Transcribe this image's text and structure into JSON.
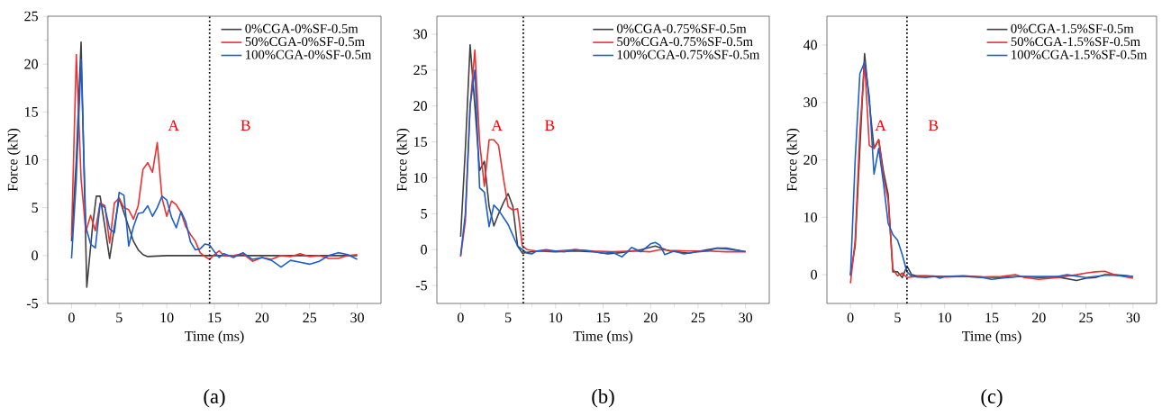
{
  "chart_data": [
    {
      "type": "line",
      "xlabel": "Time (ms)",
      "ylabel": "Force (kN)",
      "xlim": [
        -2.5,
        32.5
      ],
      "ylim": [
        -5,
        25
      ],
      "xticks": [
        0,
        5,
        10,
        15,
        20,
        25,
        30
      ],
      "yticks": [
        -5,
        0,
        5,
        10,
        15,
        20,
        25
      ],
      "legend": "top right",
      "grid": false,
      "line_style": "solid",
      "ref_lines": [
        {
          "axis": "x",
          "value": 14.5,
          "line_style": "dotted",
          "color": "#000000"
        }
      ],
      "annotations": [
        "A",
        "B",
        "(a)"
      ],
      "series": [
        {
          "name": "0%CGA-0%SF-0.5m",
          "color": "#404040",
          "x": [
            0,
            0.5,
            1.0,
            1.6,
            2.2,
            2.6,
            3.0,
            3.5,
            4.0,
            4.5,
            5.0,
            5.5,
            6,
            6.5,
            7,
            7.5,
            8,
            10,
            15,
            20,
            25,
            28,
            30
          ],
          "values": [
            1.5,
            10,
            22.3,
            -3.3,
            3,
            6.2,
            6.2,
            3,
            -0.3,
            3,
            6,
            4.5,
            3,
            1.5,
            0.6,
            0.1,
            -0.1,
            0,
            0,
            0,
            0,
            0,
            0
          ]
        },
        {
          "name": "50%CGA-0%SF-0.5m",
          "color": "#ee3030",
          "x": [
            0,
            0.5,
            1.0,
            1.5,
            2.0,
            2.5,
            3.0,
            3.5,
            4.0,
            4.5,
            5.0,
            5.5,
            6.0,
            6.5,
            7.0,
            7.5,
            8.0,
            8.5,
            9.0,
            9.5,
            10.0,
            10.5,
            11.0,
            11.5,
            12,
            12.5,
            13,
            13.5,
            14,
            14.5,
            15,
            15.5,
            16,
            17,
            18,
            19,
            20,
            21,
            22,
            23,
            24,
            25,
            26,
            27,
            28,
            29,
            30
          ],
          "values": [
            2,
            21,
            8,
            2.5,
            4.2,
            2.6,
            5.5,
            5.2,
            1.3,
            5.5,
            6,
            5,
            4.8,
            3.8,
            5.2,
            9,
            9.7,
            8.7,
            11.8,
            6,
            4.1,
            5.7,
            5.3,
            4.5,
            3,
            2.2,
            1.5,
            0.3,
            -0.1,
            -0.4,
            0.1,
            0.5,
            0,
            0,
            0.2,
            -0.6,
            -0.2,
            -0.4,
            0,
            -0.1,
            0.2,
            -0.1,
            0,
            -0.3,
            -0.3,
            0,
            0.1
          ]
        },
        {
          "name": "100%CGA-0%SF-0.5m",
          "color": "#1a5fd0",
          "x": [
            0,
            0.5,
            1.0,
            1.5,
            2.0,
            2.5,
            3.0,
            3.5,
            4.0,
            4.5,
            5.0,
            5.5,
            6.0,
            6.5,
            7.0,
            7.5,
            8.0,
            8.5,
            9.0,
            9.5,
            10,
            10.5,
            11,
            11.5,
            12,
            12.5,
            13,
            13.5,
            14,
            14.5,
            15,
            15.5,
            16,
            17,
            18,
            19,
            20,
            21,
            22,
            23,
            24,
            25,
            26,
            27,
            28,
            29,
            30
          ],
          "values": [
            -0.3,
            8,
            20.5,
            3,
            1.2,
            0.8,
            5.4,
            5,
            2.8,
            2.4,
            6.6,
            6.3,
            1,
            3,
            4.4,
            4.5,
            5.2,
            4.1,
            5,
            6.2,
            5.8,
            4,
            2.9,
            4.6,
            3.5,
            1.4,
            0.6,
            0.7,
            1.2,
            1.1,
            0.4,
            -0.2,
            0.2,
            -0.2,
            0.3,
            -0.4,
            -0.2,
            -0.5,
            -1.2,
            -0.5,
            -0.7,
            -0.9,
            -0.6,
            0,
            0.3,
            0.1,
            -0.4
          ]
        }
      ]
    },
    {
      "type": "line",
      "xlabel": "Time (ms)",
      "ylabel": "Force (kN)",
      "xlim": [
        -2.5,
        32.5
      ],
      "ylim": [
        -7.5,
        32.5
      ],
      "xticks": [
        0,
        5,
        10,
        15,
        20,
        25,
        30
      ],
      "yticks": [
        -5,
        0,
        5,
        10,
        15,
        20,
        25,
        30
      ],
      "legend": "top right",
      "grid": false,
      "line_style": "solid",
      "ref_lines": [
        {
          "axis": "x",
          "value": 6.6,
          "line_style": "dotted",
          "color": "#000000"
        }
      ],
      "annotations": [
        "A",
        "B",
        "(b)"
      ],
      "series": [
        {
          "name": "0%CGA-0.75%SF-0.5m",
          "color": "#404040",
          "x": [
            0,
            0.5,
            1.0,
            1.5,
            2.0,
            2.5,
            3.0,
            3.5,
            4.0,
            4.5,
            5.0,
            5.5,
            6.0,
            6.5,
            7,
            8,
            10,
            12,
            14,
            15.5,
            17,
            19,
            20.5,
            22,
            24,
            26,
            27,
            28,
            30
          ],
          "values": [
            1.8,
            14,
            28.5,
            20,
            11,
            12.3,
            6,
            3.3,
            5,
            6.5,
            7.8,
            6,
            0.5,
            -0.5,
            -0.4,
            -0.2,
            -0.3,
            -0.2,
            -0.3,
            -0.6,
            -0.4,
            0,
            0.5,
            -0.2,
            -0.5,
            0,
            0.2,
            0.2,
            -0.3
          ]
        },
        {
          "name": "50%CGA-0.75%SF-0.5m",
          "color": "#ee3030",
          "x": [
            0,
            0.5,
            1.0,
            1.5,
            2.0,
            2.5,
            3.0,
            3.5,
            4.0,
            4.5,
            5.0,
            5.5,
            6.0,
            6.5,
            7,
            8,
            10,
            12,
            14,
            16,
            18,
            20,
            21,
            22,
            24,
            26,
            28,
            30
          ],
          "values": [
            -1,
            4,
            20,
            27.8,
            15,
            8.8,
            15.3,
            15.3,
            14.5,
            10,
            6,
            5.5,
            5.7,
            0.5,
            0,
            -0.2,
            -0.2,
            0,
            -0.2,
            -0.3,
            -0.2,
            -0.3,
            0,
            -0.1,
            -0.2,
            -0.2,
            -0.3,
            -0.3
          ]
        },
        {
          "name": "100%CGA-0.75%SF-0.5m",
          "color": "#1a5fd0",
          "x": [
            0,
            0.5,
            1.0,
            1.5,
            2.0,
            2.5,
            3.0,
            3.5,
            4.0,
            5.0,
            6.0,
            7,
            7.5,
            8,
            9,
            10,
            11,
            12,
            13,
            14,
            15,
            16,
            17,
            17.5,
            18,
            19,
            20,
            20.5,
            21,
            21.5,
            22.5,
            23.5,
            25,
            26,
            27,
            28,
            29,
            30
          ],
          "values": [
            -0.8,
            5,
            20,
            25,
            8.6,
            8,
            3.2,
            6.2,
            5.5,
            3.5,
            0.5,
            -0.5,
            -0.6,
            -0.2,
            0,
            -0.2,
            -0.3,
            0,
            -0.1,
            -0.3,
            -0.5,
            -0.4,
            -1,
            -0.4,
            0.3,
            -0.3,
            0.8,
            1,
            0.6,
            -0.7,
            -0.2,
            -0.6,
            -0.3,
            -0.2,
            0.2,
            0.1,
            -0.1,
            -0.3
          ]
        }
      ]
    },
    {
      "type": "line",
      "xlabel": "Time (ms)",
      "ylabel": "Force (kN)",
      "xlim": [
        -2.5,
        32.5
      ],
      "ylim": [
        -5,
        45
      ],
      "xticks": [
        0,
        5,
        10,
        15,
        20,
        25,
        30
      ],
      "yticks": [
        0,
        10,
        20,
        30,
        40
      ],
      "legend": "top right",
      "grid": false,
      "line_style": "solid",
      "ref_lines": [
        {
          "axis": "x",
          "value": 6,
          "line_style": "dotted",
          "color": "#000000"
        }
      ],
      "annotations": [
        "A",
        "B",
        "(c)"
      ],
      "series": [
        {
          "name": "0%CGA-1.5%SF-0.5m",
          "color": "#404040",
          "x": [
            0,
            0.5,
            1.0,
            1.5,
            2.0,
            2.5,
            3.0,
            3.5,
            4.0,
            4.5,
            5.0,
            5.5,
            6.0,
            6.5,
            7,
            8,
            10,
            12,
            14,
            16,
            18,
            20,
            22,
            24,
            25,
            26,
            27,
            28,
            29,
            30
          ],
          "values": [
            0,
            5,
            22,
            38.5,
            30,
            22,
            23.5,
            18,
            14,
            0.5,
            0.5,
            -0.5,
            1.5,
            0,
            -0.2,
            -0.2,
            -0.3,
            -0.2,
            -0.4,
            -0.5,
            -0.3,
            -0.5,
            -0.4,
            -1,
            -0.6,
            -0.5,
            0,
            0,
            -0.1,
            -0.3
          ]
        },
        {
          "name": "50%CGA-1.5%SF-0.5m",
          "color": "#ee3030",
          "x": [
            0,
            0.5,
            1.0,
            1.5,
            2.0,
            2.5,
            3.0,
            3.5,
            4.0,
            4.5,
            5.0,
            5.5,
            6.0,
            7,
            8,
            10,
            12,
            14,
            16,
            17.5,
            18.5,
            20,
            22,
            24,
            25,
            26,
            27,
            28,
            30
          ],
          "values": [
            -1.5,
            6,
            25,
            37,
            22.5,
            22,
            23.5,
            17,
            13,
            1,
            -0.2,
            0.3,
            -0.5,
            -0.3,
            -0.3,
            -0.4,
            -0.3,
            -0.4,
            -0.3,
            0,
            -0.5,
            -0.8,
            -0.5,
            0,
            0.3,
            0.5,
            0.6,
            0,
            -0.6
          ]
        },
        {
          "name": "100%CGA-1.5%SF-0.5m",
          "color": "#1a5fd0",
          "x": [
            0,
            0.5,
            1.0,
            1.5,
            2.0,
            2.5,
            3.0,
            3.5,
            4.0,
            4.5,
            5.0,
            5.5,
            6.0,
            6.5,
            8,
            9,
            9.5,
            10,
            12,
            14,
            15,
            16,
            18,
            20,
            22,
            23,
            25,
            27,
            28,
            30
          ],
          "values": [
            -0.2,
            20,
            35,
            37,
            31,
            17.5,
            22,
            16,
            9,
            7,
            6,
            3.5,
            0.5,
            -0.3,
            -0.5,
            -0.3,
            -0.6,
            -0.3,
            -0.3,
            -0.5,
            -0.8,
            -0.6,
            -0.3,
            -0.3,
            -0.3,
            0,
            -0.5,
            -0.1,
            -0.1,
            -0.3
          ]
        }
      ]
    }
  ]
}
